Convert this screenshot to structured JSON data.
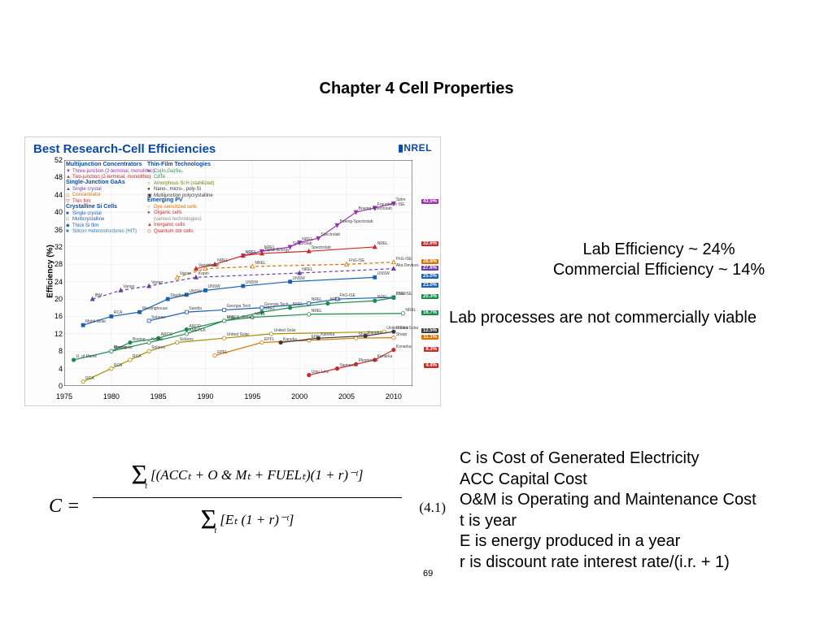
{
  "title": "Chapter 4  Cell Properties",
  "chart": {
    "title": "Best Research-Cell Efficiencies",
    "logo": "▮NREL",
    "y_axis_label": "Efficiency (%)",
    "x_ticks": [
      1975,
      1980,
      1985,
      1990,
      1995,
      2000,
      2005,
      2010
    ],
    "y_ticks": [
      0,
      4,
      8,
      12,
      16,
      20,
      24,
      28,
      32,
      36,
      40,
      44,
      48,
      52
    ],
    "xlim": [
      1975,
      2012
    ],
    "ylim": [
      0,
      52
    ],
    "background_color": "#fdfdfd",
    "grid_color": "#e8e8e8",
    "legend_groups": [
      {
        "header": "Multijunction Concentrators",
        "color_header": "#0b4aa2",
        "items": [
          {
            "marker": "▼",
            "color": "#9b2fae",
            "label": "Three-junction (2-terminal, monolithic)"
          },
          {
            "marker": "▲",
            "color": "#cc2a2a",
            "label": "Two-junction (2-terminal, monolithic)"
          }
        ]
      },
      {
        "header": "Single-Junction GaAs",
        "color_header": "#0b4aa2",
        "items": [
          {
            "marker": "▲",
            "color": "#6a3fa0",
            "label": "Single crystal"
          },
          {
            "marker": "△",
            "color": "#d96f00",
            "label": "Concentrator"
          },
          {
            "marker": "▽",
            "color": "#cc2a2a",
            "label": "Thin film"
          }
        ]
      },
      {
        "header": "Crystalline Si Cells",
        "color_header": "#0b4aa2",
        "items": [
          {
            "marker": "■",
            "color": "#1b5fb3",
            "label": "Single crystal"
          },
          {
            "marker": "□",
            "color": "#1b5fb3",
            "label": "Multicrystalline"
          },
          {
            "marker": "◆",
            "color": "#1b5fb3",
            "label": "Thick Si film"
          },
          {
            "marker": "■",
            "color": "#2c7fb8",
            "label": "Silicon Heterostructures (HIT)"
          }
        ]
      },
      {
        "header": "Thin-Film Technologies",
        "color_header": "#0b4aa2",
        "items": [
          {
            "marker": "●",
            "color": "#2e8b57",
            "label": "Cu(In,Ga)Se₂"
          },
          {
            "marker": "○",
            "color": "#2e8b57",
            "label": "CdTe"
          },
          {
            "marker": "○",
            "color": "#7a7a00",
            "label": "Amorphous Si:H (stabilized)"
          },
          {
            "marker": "●",
            "color": "#3a3a3a",
            "label": "Nano-, micro-, poly-Si"
          },
          {
            "marker": "▣",
            "color": "#3a3a3a",
            "label": "Multijunction polycrystalline"
          }
        ]
      },
      {
        "header": "Emerging PV",
        "color_header": "#0b4aa2",
        "items": [
          {
            "marker": "○",
            "color": "#d96f00",
            "label": "Dye-sensitized cells"
          },
          {
            "marker": "●",
            "color": "#cc2a2a",
            "label": "Organic cells"
          },
          {
            "marker": "",
            "color": "#888888",
            "label": "(various technologies)"
          },
          {
            "marker": "▲",
            "color": "#cc2a2a",
            "label": "Inorganic cells"
          },
          {
            "marker": "◇",
            "color": "#cc2a2a",
            "label": "Quantum dot cells"
          }
        ]
      }
    ],
    "series": [
      {
        "id": "three-junction",
        "color": "#9b2fae",
        "dash": false,
        "marker": "▼",
        "points": [
          [
            1994,
            30
          ],
          [
            1996,
            31
          ],
          [
            1999,
            32
          ],
          [
            2000,
            33
          ],
          [
            2002,
            34
          ],
          [
            2004,
            37
          ],
          [
            2006,
            40
          ],
          [
            2008,
            41
          ],
          [
            2010,
            42
          ]
        ],
        "labels": [
          "NREL",
          "NREL",
          "Spectrolab",
          "NREL",
          "Spectrolab",
          "Boeing-Spectrolab",
          "Boeing-Spectrolab",
          "Fraunhofer ISE",
          "Spire"
        ]
      },
      {
        "id": "two-junction",
        "color": "#cc2a2a",
        "dash": false,
        "marker": "▲",
        "points": [
          [
            1989,
            27
          ],
          [
            1991,
            28
          ],
          [
            1994,
            30
          ],
          [
            1996,
            30.5
          ],
          [
            2001,
            31
          ],
          [
            2008,
            32
          ]
        ],
        "labels": [
          "Varian",
          "NREL",
          "NREL",
          "Japan Energy",
          "Spectrolab",
          "NREL"
        ]
      },
      {
        "id": "gaas-single",
        "color": "#6a3fa0",
        "dash": true,
        "marker": "▲",
        "points": [
          [
            1978,
            20
          ],
          [
            1981,
            22
          ],
          [
            1984,
            23
          ],
          [
            1989,
            25
          ],
          [
            2000,
            26
          ],
          [
            2010,
            27
          ]
        ],
        "labels": [
          "IBM",
          "Varian",
          "Varian",
          "Kopin",
          "NREL",
          "Alta Devices"
        ]
      },
      {
        "id": "gaas-concentrator",
        "color": "#d96f00",
        "dash": true,
        "marker": "△",
        "points": [
          [
            1987,
            25
          ],
          [
            1990,
            27
          ],
          [
            1995,
            27.5
          ],
          [
            2005,
            28
          ],
          [
            2010,
            28.5
          ]
        ],
        "labels": [
          "Varian",
          "Varian",
          "NREL",
          "FhG-ISE",
          "FhG-ISE"
        ]
      },
      {
        "id": "si-single",
        "color": "#1b5fb3",
        "dash": false,
        "marker": "■",
        "points": [
          [
            1977,
            14
          ],
          [
            1980,
            16
          ],
          [
            1983,
            17
          ],
          [
            1986,
            20
          ],
          [
            1988,
            21
          ],
          [
            1990,
            22
          ],
          [
            1994,
            23
          ],
          [
            1999,
            24
          ],
          [
            2008,
            25
          ]
        ],
        "labels": [
          "Mobil Solar",
          "RCA",
          "Westinghouse",
          "Stanford",
          "UNSW",
          "UNSW",
          "UNSW",
          "UNSW",
          "UNSW"
        ]
      },
      {
        "id": "si-multi",
        "color": "#1b5fb3",
        "dash": false,
        "marker": "□",
        "points": [
          [
            1984,
            15
          ],
          [
            1988,
            17
          ],
          [
            1992,
            17.5
          ],
          [
            1996,
            18
          ],
          [
            2001,
            19
          ],
          [
            2004,
            20
          ],
          [
            2010,
            20.4
          ]
        ],
        "labels": [
          "Solarex",
          "Sandia",
          "Georgia Tech",
          "Georgia Tech",
          "NREL",
          "FhG-ISE",
          "FhG-ISE"
        ]
      },
      {
        "id": "cigs",
        "color": "#1b8b4c",
        "dash": false,
        "marker": "●",
        "points": [
          [
            1976,
            6
          ],
          [
            1980,
            8
          ],
          [
            1982,
            10
          ],
          [
            1985,
            11
          ],
          [
            1988,
            13
          ],
          [
            1992,
            15
          ],
          [
            1996,
            17
          ],
          [
            1999,
            18
          ],
          [
            2003,
            19
          ],
          [
            2008,
            19.6
          ],
          [
            2010,
            20.3
          ]
        ],
        "labels": [
          "U. of Maine",
          "Boeing",
          "Boeing",
          "ARCO",
          "ARCO",
          "NREL",
          "NREL",
          "NREL",
          "NREL",
          "NREL",
          "ZSW"
        ]
      },
      {
        "id": "cdte",
        "color": "#1b8b4c",
        "dash": false,
        "marker": "○",
        "points": [
          [
            1980,
            8
          ],
          [
            1984,
            10
          ],
          [
            1988,
            12
          ],
          [
            1992,
            15
          ],
          [
            1995,
            15.8
          ],
          [
            2001,
            16.5
          ],
          [
            2011,
            16.7
          ]
        ],
        "labels": [
          "Monosolar",
          "Kodak",
          "AMETEK",
          "Univ. S. Florida",
          "NREL",
          "NREL",
          "NREL"
        ]
      },
      {
        "id": "asi",
        "color": "#a88e00",
        "dash": false,
        "marker": "○",
        "points": [
          [
            1977,
            1
          ],
          [
            1980,
            4
          ],
          [
            1982,
            6
          ],
          [
            1984,
            8
          ],
          [
            1987,
            10
          ],
          [
            1992,
            11
          ],
          [
            1997,
            12
          ],
          [
            2009,
            12.5
          ]
        ],
        "labels": [
          "RCA",
          "RCA",
          "RCA",
          "Solarex",
          "Solarex",
          "United Solar",
          "United Solar",
          "United Solar"
        ]
      },
      {
        "id": "dye",
        "color": "#d96f00",
        "dash": false,
        "marker": "○",
        "points": [
          [
            1991,
            7
          ],
          [
            1996,
            10
          ],
          [
            2001,
            10.5
          ],
          [
            2006,
            11
          ],
          [
            2010,
            11.1
          ]
        ],
        "labels": [
          "EPFL",
          "EPFL",
          "EPFL",
          "Sharp",
          "Sharp"
        ]
      },
      {
        "id": "organic",
        "color": "#cc2a2a",
        "dash": false,
        "marker": "●",
        "points": [
          [
            2001,
            2.5
          ],
          [
            2004,
            4
          ],
          [
            2006,
            5
          ],
          [
            2008,
            6
          ],
          [
            2010,
            8.3
          ]
        ],
        "labels": [
          "Univ. Linz",
          "Siemens",
          "Plextronics",
          "Konarka",
          "Konarka"
        ]
      },
      {
        "id": "nano-si",
        "color": "#3a3a3a",
        "dash": false,
        "marker": "●",
        "points": [
          [
            1998,
            10
          ],
          [
            2002,
            11
          ],
          [
            2007,
            11.5
          ],
          [
            2010,
            12.5
          ]
        ],
        "labels": [
          "Kaneka",
          "Kaneka",
          "Kaneka",
          "United Solar"
        ]
      }
    ],
    "end_badges": [
      {
        "y": 42.3,
        "text": "43.5%",
        "color": "#9b2fae"
      },
      {
        "y": 32.6,
        "text": "32.6%",
        "color": "#cc2a2a"
      },
      {
        "y": 28.5,
        "text": "28.8%",
        "color": "#d96f00"
      },
      {
        "y": 27.0,
        "text": "27.6%",
        "color": "#6a3fa0"
      },
      {
        "y": 25.0,
        "text": "25.0%",
        "color": "#1b5fb3"
      },
      {
        "y": 23.0,
        "text": "23.0%",
        "color": "#1b5fb3"
      },
      {
        "y": 20.4,
        "text": "20.4%",
        "color": "#2c7fb8"
      },
      {
        "y": 20.3,
        "text": "20.3%",
        "color": "#1b8b4c"
      },
      {
        "y": 16.7,
        "text": "16.7%",
        "color": "#1b8b4c"
      },
      {
        "y": 12.5,
        "text": "12.5%",
        "color": "#3a3a3a"
      },
      {
        "y": 11.1,
        "text": "11.1%",
        "color": "#d96f00"
      },
      {
        "y": 8.3,
        "text": "8.3%",
        "color": "#cc2a2a"
      },
      {
        "y": 4.4,
        "text": "4.4%",
        "color": "#cc2a2a"
      }
    ]
  },
  "annotations": {
    "lab_eff": "Lab Efficiency ~ 24%",
    "comm_eff": "Commercial Efficiency ~ 14%",
    "note": "Lab processes are not commercially viable"
  },
  "formula": {
    "lhs": "C =",
    "num_pre": "Σ",
    "num_sub": "t",
    "num_body": "[(ACCₜ + O & Mₜ + FUELₜ)(1 + r)⁻ᵗ]",
    "den_pre": "Σ",
    "den_sub": "t",
    "den_body": "[Eₜ (1 + r)⁻ᵗ]",
    "eqnum": "(4.1)"
  },
  "definitions": [
    "C is Cost of Generated Electricity",
    "ACC Capital Cost",
    "O&M is Operating and Maintenance Cost",
    "t is year",
    "E is energy produced in a year",
    "r is discount rate interest rate/(i.r. + 1)"
  ],
  "page_number": "69"
}
